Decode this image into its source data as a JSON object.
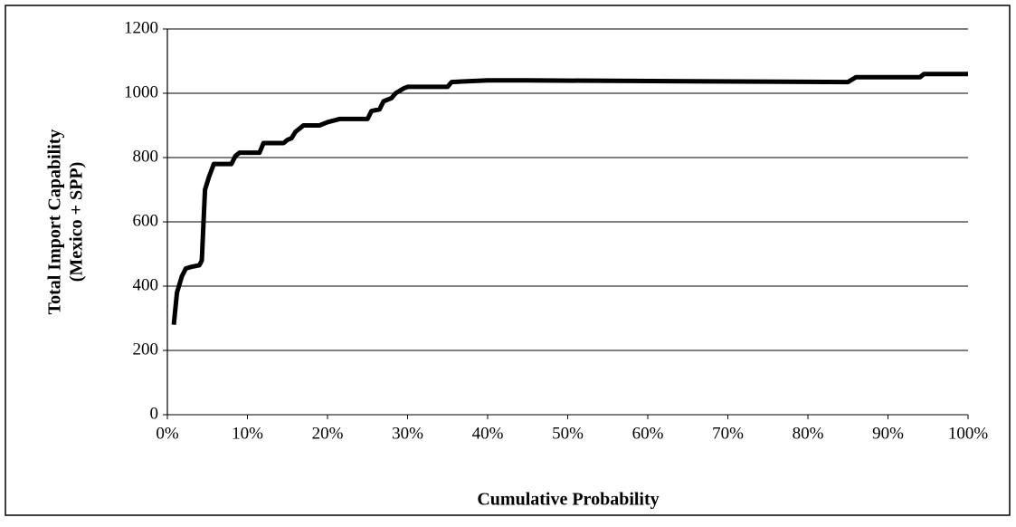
{
  "chart_data": {
    "type": "line",
    "xlabel": "Cumulative Probability",
    "ylabel": [
      "Total Import Capability",
      "(Mexico + SPP)"
    ],
    "xlim": [
      0,
      100
    ],
    "ylim": [
      0,
      1200
    ],
    "xticks": [
      {
        "value": 0,
        "label": "0%"
      },
      {
        "value": 10,
        "label": "10%"
      },
      {
        "value": 20,
        "label": "20%"
      },
      {
        "value": 30,
        "label": "30%"
      },
      {
        "value": 40,
        "label": "40%"
      },
      {
        "value": 50,
        "label": "50%"
      },
      {
        "value": 60,
        "label": "60%"
      },
      {
        "value": 70,
        "label": "70%"
      },
      {
        "value": 80,
        "label": "80%"
      },
      {
        "value": 90,
        "label": "90%"
      },
      {
        "value": 100,
        "label": "100%"
      }
    ],
    "yticks": [
      0,
      200,
      400,
      600,
      800,
      1000,
      1200
    ],
    "grid": true,
    "series": [
      {
        "color": "#000000",
        "x": [
          0.8,
          1.2,
          1.8,
          2.3,
          3,
          4,
          4.3,
          4.7,
          5.2,
          5.8,
          8,
          8.5,
          9,
          11.5,
          12,
          14.5,
          15,
          15.5,
          16,
          17,
          19,
          20,
          21.5,
          25,
          25.5,
          26.5,
          27,
          28,
          28.5,
          29.5,
          30,
          35,
          35.5,
          40,
          45,
          85,
          86,
          94,
          94.5,
          100
        ],
        "values": [
          280,
          380,
          430,
          455,
          460,
          465,
          480,
          700,
          740,
          780,
          780,
          805,
          815,
          815,
          845,
          845,
          855,
          860,
          880,
          900,
          900,
          910,
          920,
          920,
          945,
          950,
          975,
          985,
          1000,
          1015,
          1020,
          1020,
          1035,
          1040,
          1040,
          1035,
          1050,
          1050,
          1060,
          1060
        ]
      }
    ]
  }
}
